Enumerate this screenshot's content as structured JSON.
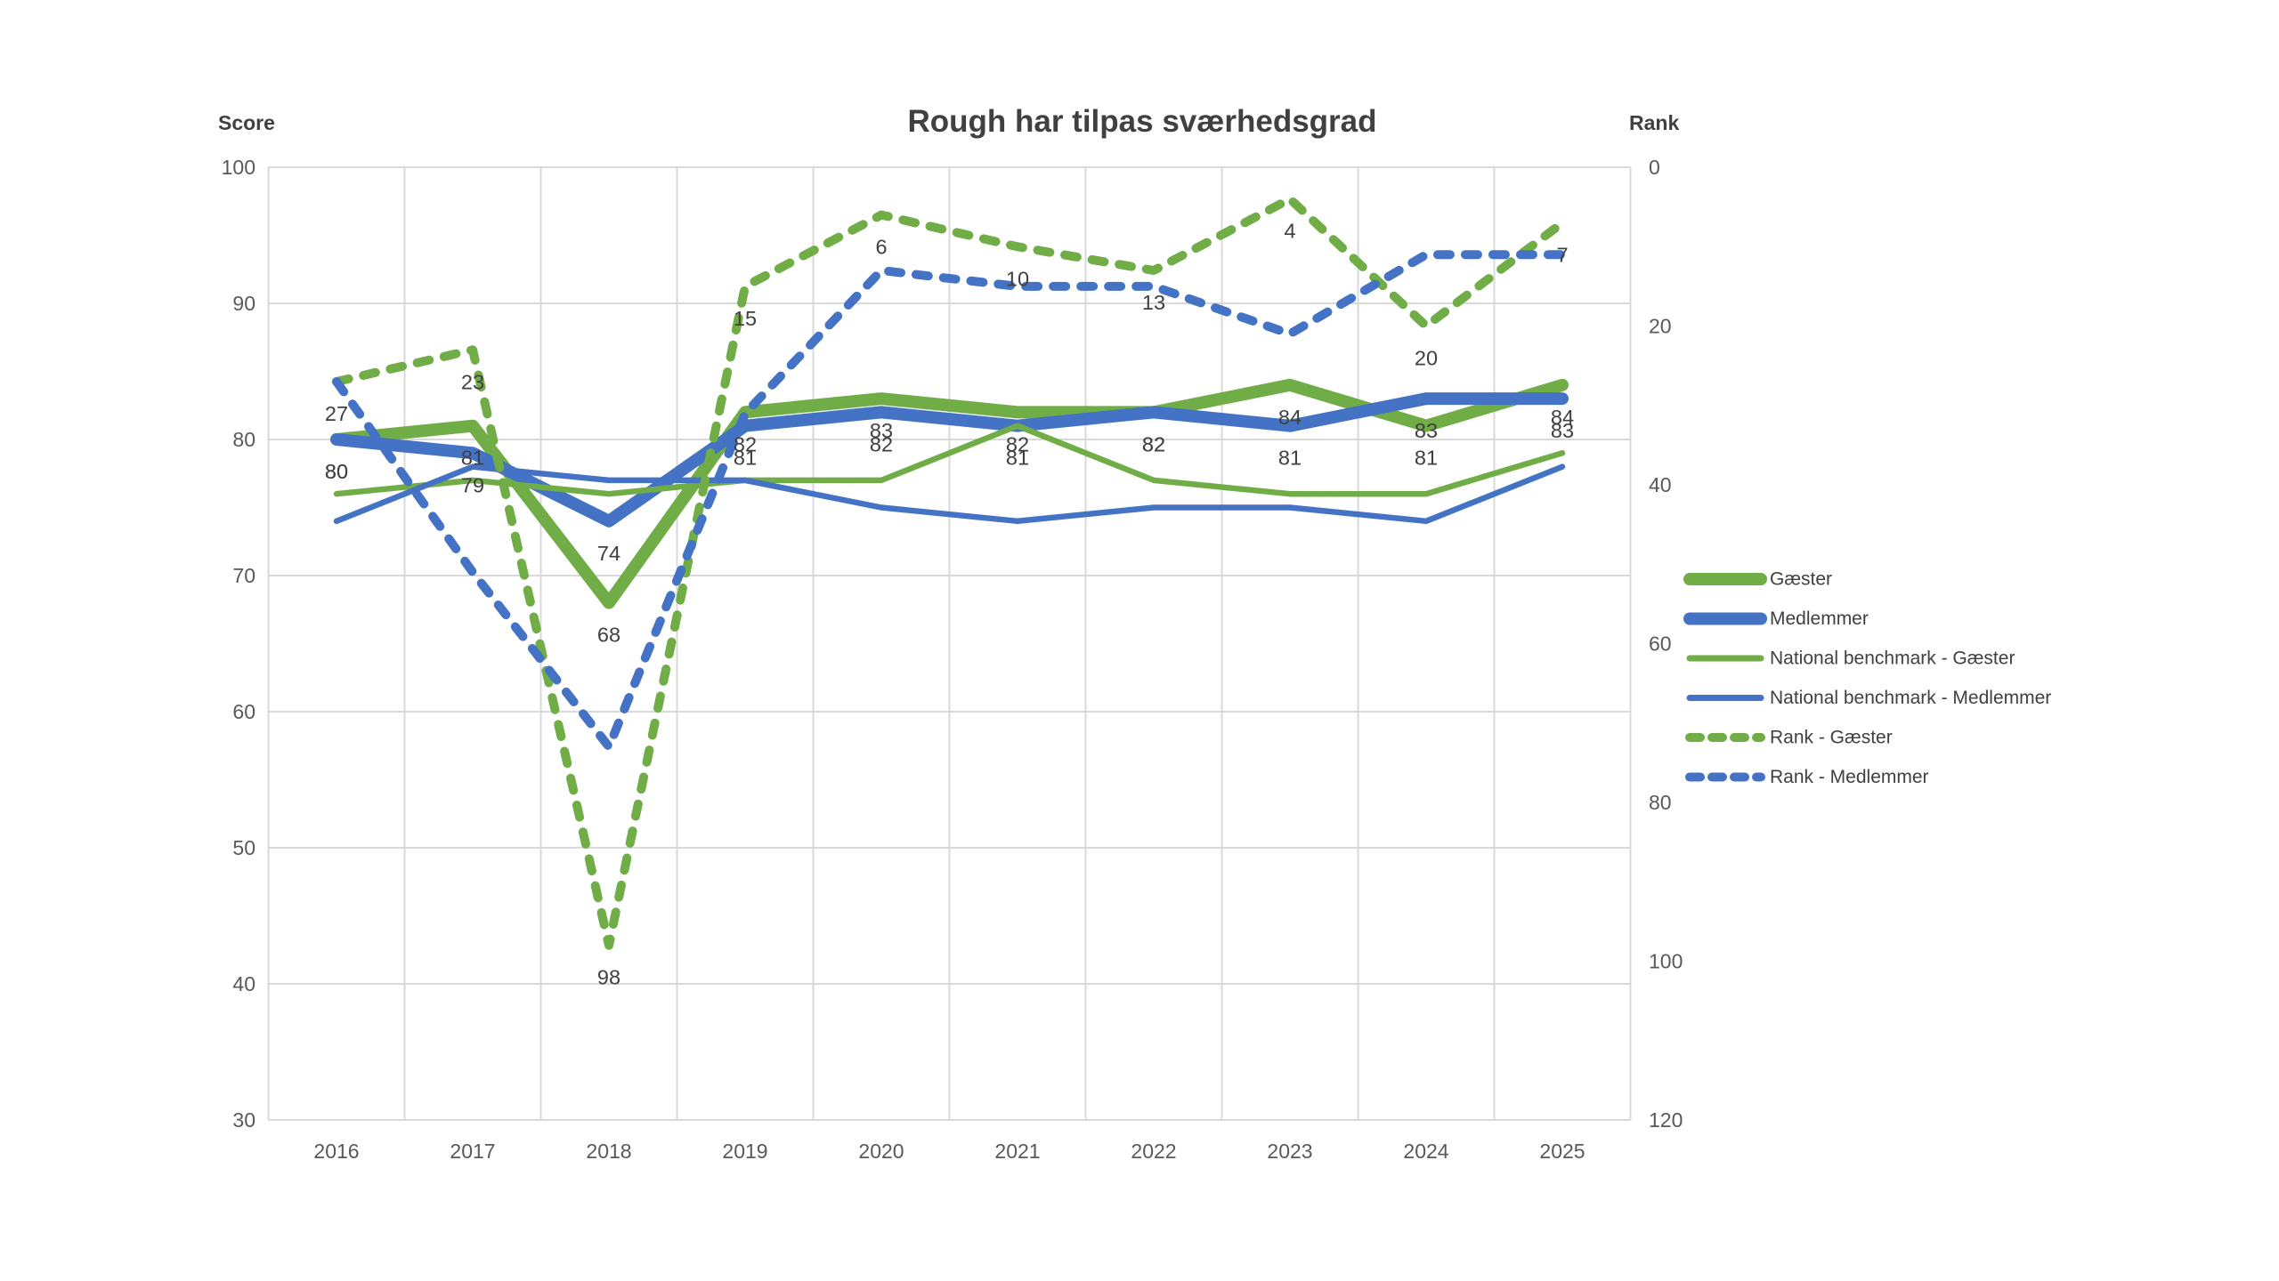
{
  "title": "Rough har tilpas sværhedsgrad",
  "left_axis": {
    "label": "Score",
    "ticks": [
      100,
      90,
      80,
      70,
      60,
      50,
      40,
      30
    ],
    "min": 30,
    "max": 100
  },
  "right_axis": {
    "label": "Rank",
    "ticks": [
      0,
      20,
      40,
      60,
      80,
      100,
      120
    ],
    "min": 0,
    "max": 120
  },
  "colors": {
    "green": "#70AD47",
    "blue": "#4472C4",
    "grid": "#D9D9D9",
    "title_text": "#404040",
    "tick_text": "#595959",
    "label_text": "#404040"
  },
  "chart_data": {
    "type": "line",
    "categories": [
      "2016",
      "2017",
      "2018",
      "2019",
      "2020",
      "2021",
      "2022",
      "2023",
      "2024",
      "2025"
    ],
    "series": [
      {
        "name": "Gæster",
        "slug": "gaester",
        "axis": "score",
        "style": "thick",
        "color": "green",
        "show_labels": true,
        "values": [
          80,
          81,
          68,
          82,
          83,
          82,
          82,
          84,
          81,
          84
        ]
      },
      {
        "name": "Medlemmer",
        "slug": "medlemmer",
        "axis": "score",
        "style": "thick",
        "color": "blue",
        "show_labels": true,
        "values": [
          80,
          79,
          74,
          81,
          82,
          81,
          82,
          81,
          83,
          83
        ]
      },
      {
        "name": "National benchmark - Gæster",
        "slug": "nb-gaester",
        "axis": "score",
        "style": "thin",
        "color": "green",
        "show_labels": false,
        "values": [
          76,
          77,
          76,
          77,
          77,
          81,
          77,
          76,
          76,
          79
        ]
      },
      {
        "name": "National benchmark - Medlemmer",
        "slug": "nb-medlemmer",
        "axis": "score",
        "style": "thin",
        "color": "blue",
        "show_labels": false,
        "values": [
          74,
          78,
          77,
          77,
          75,
          74,
          75,
          75,
          74,
          78
        ]
      },
      {
        "name": "Rank - Gæster",
        "slug": "rank-gaester",
        "axis": "rank",
        "style": "dashed",
        "color": "green",
        "show_labels": true,
        "values": [
          27,
          23,
          98,
          15,
          6,
          10,
          13,
          4,
          20,
          7
        ]
      },
      {
        "name": "Rank - Medlemmer",
        "slug": "rank-medlemmer",
        "axis": "rank",
        "style": "dashed",
        "color": "blue",
        "show_labels": false,
        "values": [
          27,
          51,
          73,
          31,
          13,
          15,
          15,
          21,
          11,
          11
        ]
      }
    ],
    "legend_position": "right",
    "grid": true
  }
}
